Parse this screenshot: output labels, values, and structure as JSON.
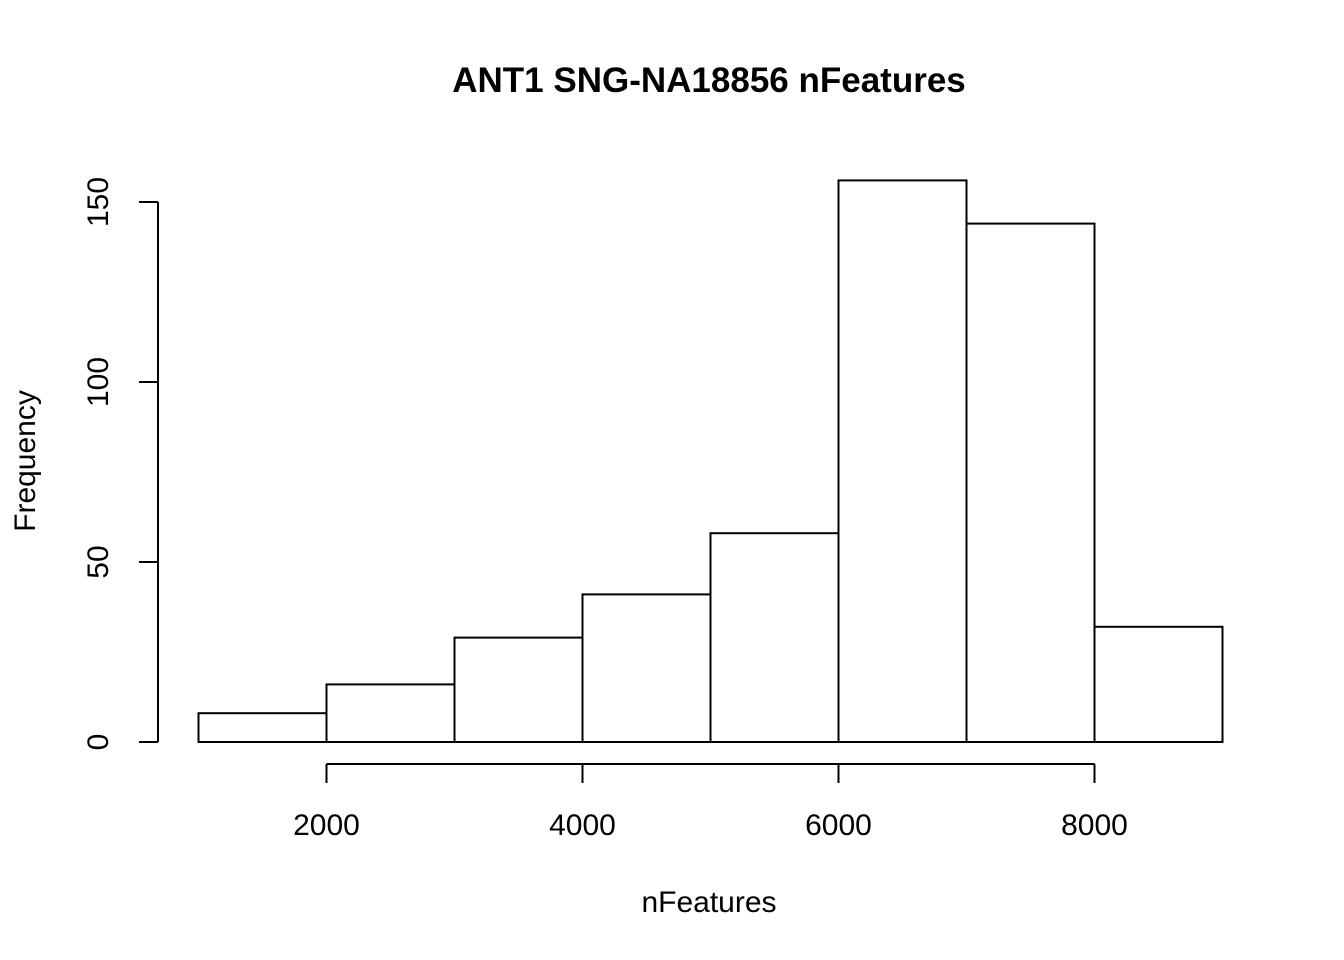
{
  "chart_data": {
    "type": "bar",
    "title": "ANT1 SNG-NA18856 nFeatures",
    "xlabel": "nFeatures",
    "ylabel": "Frequency",
    "bins": [
      {
        "start": 1000,
        "end": 2000,
        "count": 8
      },
      {
        "start": 2000,
        "end": 3000,
        "count": 16
      },
      {
        "start": 3000,
        "end": 4000,
        "count": 29
      },
      {
        "start": 4000,
        "end": 5000,
        "count": 41
      },
      {
        "start": 5000,
        "end": 6000,
        "count": 58
      },
      {
        "start": 6000,
        "end": 7000,
        "count": 156
      },
      {
        "start": 7000,
        "end": 8000,
        "count": 144
      },
      {
        "start": 8000,
        "end": 9000,
        "count": 32
      }
    ],
    "x_ticks": [
      2000,
      4000,
      6000,
      8000
    ],
    "y_ticks": [
      0,
      50,
      100,
      150
    ],
    "xlim": [
      1000,
      9000
    ],
    "ylim": [
      0,
      156
    ],
    "grid": false
  }
}
